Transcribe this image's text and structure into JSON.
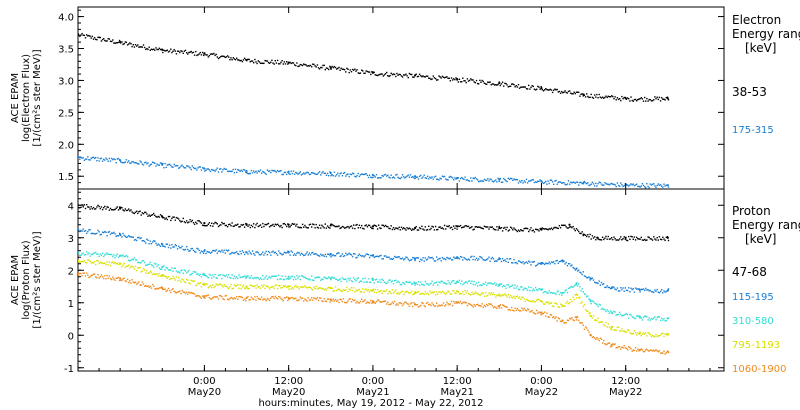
{
  "chart_data": [
    {
      "type": "scatter",
      "panel": "electron",
      "ylabel_lines": [
        "ACE EPAM",
        "log(Electron Flux)",
        "[1/(cm²s ster MeV)]"
      ],
      "ylim": [
        1.3,
        4.15
      ],
      "yticks": [
        1.5,
        2.0,
        2.5,
        3.0,
        3.5,
        4.0
      ],
      "ytick_labels": [
        "1.5",
        "2.0",
        "2.5",
        "3.0",
        "3.5",
        "4.0"
      ],
      "legend_title_lines": [
        "Electron",
        "Energy ranges",
        "[keV]"
      ],
      "series": [
        {
          "name": "38-53",
          "color": "#000000",
          "x": [
            0,
            6,
            12,
            18,
            24,
            30,
            36,
            42,
            48,
            54,
            60,
            66,
            72,
            78,
            84
          ],
          "y": [
            3.72,
            3.6,
            3.48,
            3.42,
            3.32,
            3.28,
            3.2,
            3.12,
            3.08,
            3.02,
            2.96,
            2.88,
            2.78,
            2.72,
            2.72
          ]
        },
        {
          "name": "175-315",
          "color": "#1a7fd4",
          "x": [
            0,
            6,
            12,
            18,
            24,
            30,
            36,
            42,
            48,
            54,
            60,
            66,
            72,
            78,
            84
          ],
          "y": [
            1.8,
            1.75,
            1.68,
            1.62,
            1.58,
            1.57,
            1.55,
            1.52,
            1.5,
            1.47,
            1.45,
            1.42,
            1.4,
            1.37,
            1.36
          ]
        }
      ]
    },
    {
      "type": "scatter",
      "panel": "proton",
      "ylabel_lines": [
        "ACE EPAM",
        "log(Proton Flux)",
        "[1/(cm²s ster MeV)]"
      ],
      "ylim": [
        -1.1,
        4.5
      ],
      "yticks": [
        -1,
        0,
        1,
        2,
        3,
        4
      ],
      "ytick_labels": [
        "-1",
        "0",
        "1",
        "2",
        "3",
        "4"
      ],
      "legend_title_lines": [
        "Proton",
        "Energy ranges",
        "[keV]"
      ],
      "series": [
        {
          "name": "47-68",
          "color": "#000000",
          "x": [
            0,
            6,
            12,
            18,
            24,
            30,
            36,
            42,
            48,
            54,
            60,
            66,
            70,
            72,
            74,
            78,
            84
          ],
          "y": [
            4.0,
            3.9,
            3.65,
            3.45,
            3.4,
            3.4,
            3.38,
            3.35,
            3.3,
            3.35,
            3.3,
            3.25,
            3.4,
            3.1,
            3.0,
            3.0,
            3.0
          ]
        },
        {
          "name": "115-195",
          "color": "#1a7fd4",
          "x": [
            0,
            6,
            12,
            18,
            24,
            30,
            36,
            42,
            48,
            54,
            60,
            66,
            69,
            71,
            73,
            76,
            80,
            84
          ],
          "y": [
            3.25,
            3.1,
            2.8,
            2.6,
            2.55,
            2.55,
            2.5,
            2.45,
            2.35,
            2.4,
            2.35,
            2.2,
            2.3,
            2.05,
            1.75,
            1.45,
            1.4,
            1.38
          ]
        },
        {
          "name": "310-580",
          "color": "#33dcd4",
          "x": [
            0,
            6,
            12,
            18,
            24,
            30,
            36,
            42,
            48,
            54,
            60,
            66,
            69,
            71,
            73,
            76,
            80,
            84
          ],
          "y": [
            2.55,
            2.45,
            2.1,
            1.85,
            1.8,
            1.8,
            1.75,
            1.7,
            1.6,
            1.65,
            1.55,
            1.4,
            1.3,
            1.6,
            1.05,
            0.7,
            0.55,
            0.52
          ]
        },
        {
          "name": "795-1193",
          "color": "#d8e000",
          "x": [
            0,
            6,
            12,
            18,
            24,
            30,
            36,
            42,
            48,
            54,
            60,
            66,
            69,
            71,
            73,
            76,
            80,
            84
          ],
          "y": [
            2.3,
            2.2,
            1.85,
            1.55,
            1.5,
            1.5,
            1.45,
            1.4,
            1.3,
            1.35,
            1.25,
            1.05,
            0.9,
            1.25,
            0.6,
            0.25,
            0.05,
            0.02
          ]
        },
        {
          "name": "1060-1900",
          "color": "#f08a1c",
          "x": [
            0,
            6,
            12,
            18,
            24,
            30,
            36,
            42,
            48,
            54,
            60,
            66,
            69,
            71,
            73,
            76,
            80,
            84
          ],
          "y": [
            1.9,
            1.75,
            1.45,
            1.2,
            1.15,
            1.15,
            1.1,
            1.05,
            0.95,
            1.0,
            0.9,
            0.7,
            0.45,
            0.55,
            0.0,
            -0.3,
            -0.45,
            -0.5
          ]
        }
      ]
    }
  ],
  "x_axis": {
    "label": "hours:minutes, May 19, 2012 - May 22, 2012",
    "range_hours": [
      0,
      92
    ],
    "ticks": [
      {
        "x": 18,
        "top": "0:00",
        "bottom": "May20"
      },
      {
        "x": 30,
        "top": "12:00",
        "bottom": "May20"
      },
      {
        "x": 42,
        "top": "0:00",
        "bottom": "May21"
      },
      {
        "x": 54,
        "top": "12:00",
        "bottom": "May21"
      },
      {
        "x": 66,
        "top": "0:00",
        "bottom": "May22"
      },
      {
        "x": 78,
        "top": "12:00",
        "bottom": "May22"
      }
    ]
  }
}
